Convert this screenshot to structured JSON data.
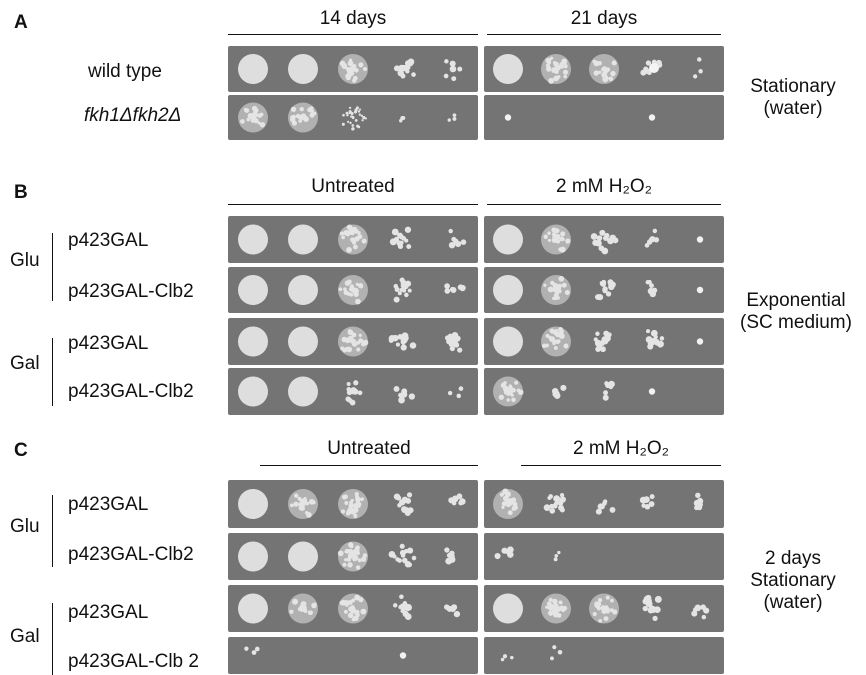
{
  "panels": [
    {
      "letter": "A",
      "headers": [
        "14 days",
        "21 days"
      ],
      "condition": [
        "Stationary",
        "(water)"
      ],
      "groups": [],
      "rows": [
        {
          "label": "wild type",
          "italic": false,
          "left": [
            "lawn",
            "lawn",
            "dense",
            "colonies",
            "sparse"
          ],
          "right": [
            "lawn",
            "dense",
            "dense",
            "mixed",
            "trace"
          ]
        },
        {
          "label": "fkh1Δfkh2Δ",
          "italic": true,
          "left": [
            "dense",
            "dense",
            "speckle",
            "trace",
            "trace"
          ],
          "right": [
            "one",
            "empty",
            "empty",
            "one",
            "empty"
          ]
        }
      ]
    },
    {
      "letter": "B",
      "headers": [
        "Untreated",
        "2 mM H₂O₂"
      ],
      "condition": [
        "Exponential",
        "(SC medium)"
      ],
      "groups": [
        "Glu",
        "Gal"
      ],
      "rows": [
        {
          "label": "p423GAL",
          "italic": false,
          "left": [
            "lawn",
            "lawn",
            "dense",
            "colonies",
            "sparse"
          ],
          "right": [
            "lawn",
            "dense",
            "colonies",
            "sparse",
            "one"
          ]
        },
        {
          "label": "p423GAL-Clb2",
          "italic": false,
          "left": [
            "lawn",
            "lawn",
            "dense",
            "colonies",
            "sparse"
          ],
          "right": [
            "lawn",
            "dense",
            "colonies",
            "sparse",
            "one"
          ]
        },
        {
          "label": "p423GAL",
          "italic": false,
          "left": [
            "lawn",
            "lawn",
            "dense",
            "colonies",
            "colonies"
          ],
          "right": [
            "lawn",
            "dense",
            "colonies",
            "colonies",
            "one"
          ]
        },
        {
          "label": "p423GAL-Clb2",
          "italic": false,
          "left": [
            "lawn",
            "lawn",
            "colonies",
            "sparse",
            "trace"
          ],
          "right": [
            "dense",
            "sparse",
            "sparse",
            "one",
            "empty"
          ]
        }
      ]
    },
    {
      "letter": "C",
      "headers": [
        "Untreated",
        "2 mM H₂O₂"
      ],
      "condition": [
        "2 days",
        "Stationary",
        "(water)"
      ],
      "groups": [
        "Glu",
        "Gal"
      ],
      "rows": [
        {
          "label": "p423GAL",
          "italic": false,
          "left": [
            "lawn",
            "dense",
            "dense",
            "colonies",
            "sparse"
          ],
          "right": [
            "dense",
            "colonies",
            "sparse",
            "sparse",
            "sparse"
          ]
        },
        {
          "label": "p423GAL-Clb2",
          "italic": false,
          "left": [
            "lawn",
            "lawn",
            "dense",
            "colonies",
            "sparse"
          ],
          "right": [
            "sparse",
            "trace",
            "empty",
            "empty",
            "empty"
          ]
        },
        {
          "label": "p423GAL",
          "italic": false,
          "left": [
            "lawn",
            "dense",
            "dense",
            "colonies",
            "sparse"
          ],
          "right": [
            "lawn",
            "dense",
            "dense",
            "colonies",
            "sparse"
          ]
        },
        {
          "label": "p423GAL-Clb 2",
          "italic": false,
          "left": [
            "trace",
            "empty",
            "empty",
            "one",
            "empty"
          ],
          "right": [
            "trace",
            "trace",
            "empty",
            "empty",
            "empty"
          ]
        }
      ]
    }
  ],
  "colors": {
    "plate": "#747474",
    "colony": "#e4e4e4"
  }
}
